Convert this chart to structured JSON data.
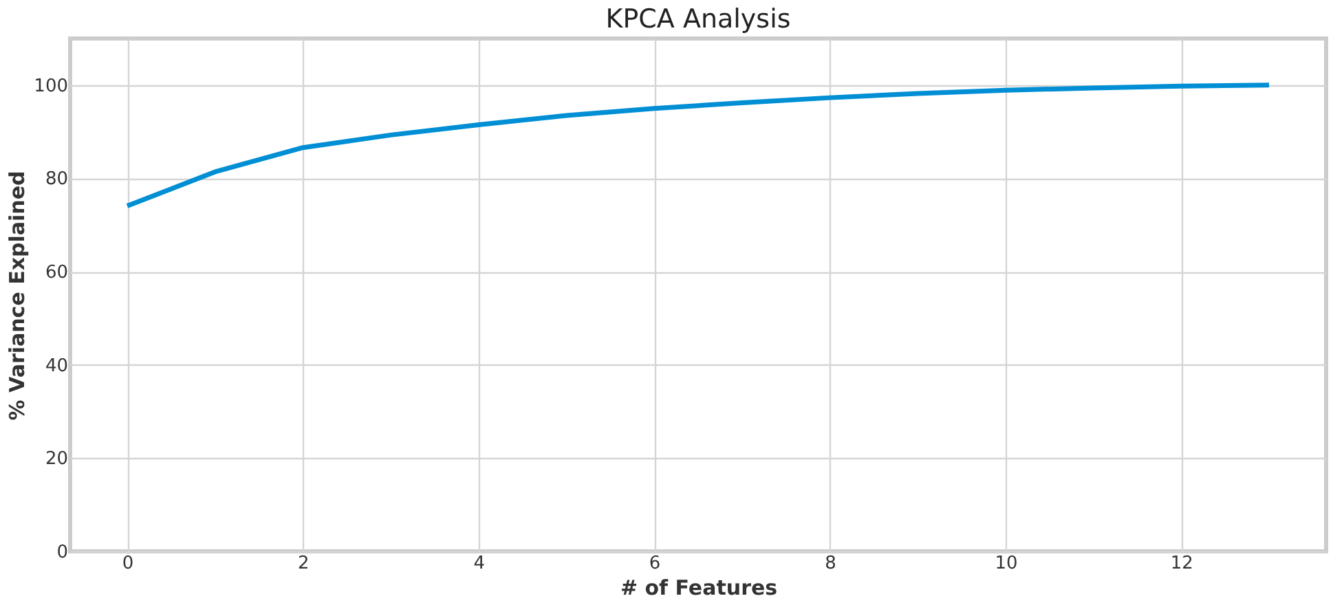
{
  "chart_data": {
    "type": "line",
    "title": "KPCA Analysis",
    "xlabel": "# of Features",
    "ylabel": "% Variance Explained",
    "x": [
      0,
      1,
      2,
      3,
      4,
      5,
      6,
      7,
      8,
      9,
      10,
      11,
      12,
      13
    ],
    "series": [
      {
        "color": "#008fd5",
        "values": [
          74.1,
          81.4,
          86.6,
          89.3,
          91.5,
          93.5,
          95.0,
          96.2,
          97.3,
          98.2,
          98.9,
          99.4,
          99.8,
          100.0
        ]
      }
    ],
    "xlim": [
      -0.65,
      13.65
    ],
    "xticks": [
      0,
      2,
      4,
      6,
      8,
      10,
      12
    ],
    "ylim": [
      0,
      110
    ],
    "yticks": [
      0,
      20,
      40,
      60,
      80,
      100
    ],
    "grid": true,
    "marker": "none",
    "line_style": "solid"
  }
}
